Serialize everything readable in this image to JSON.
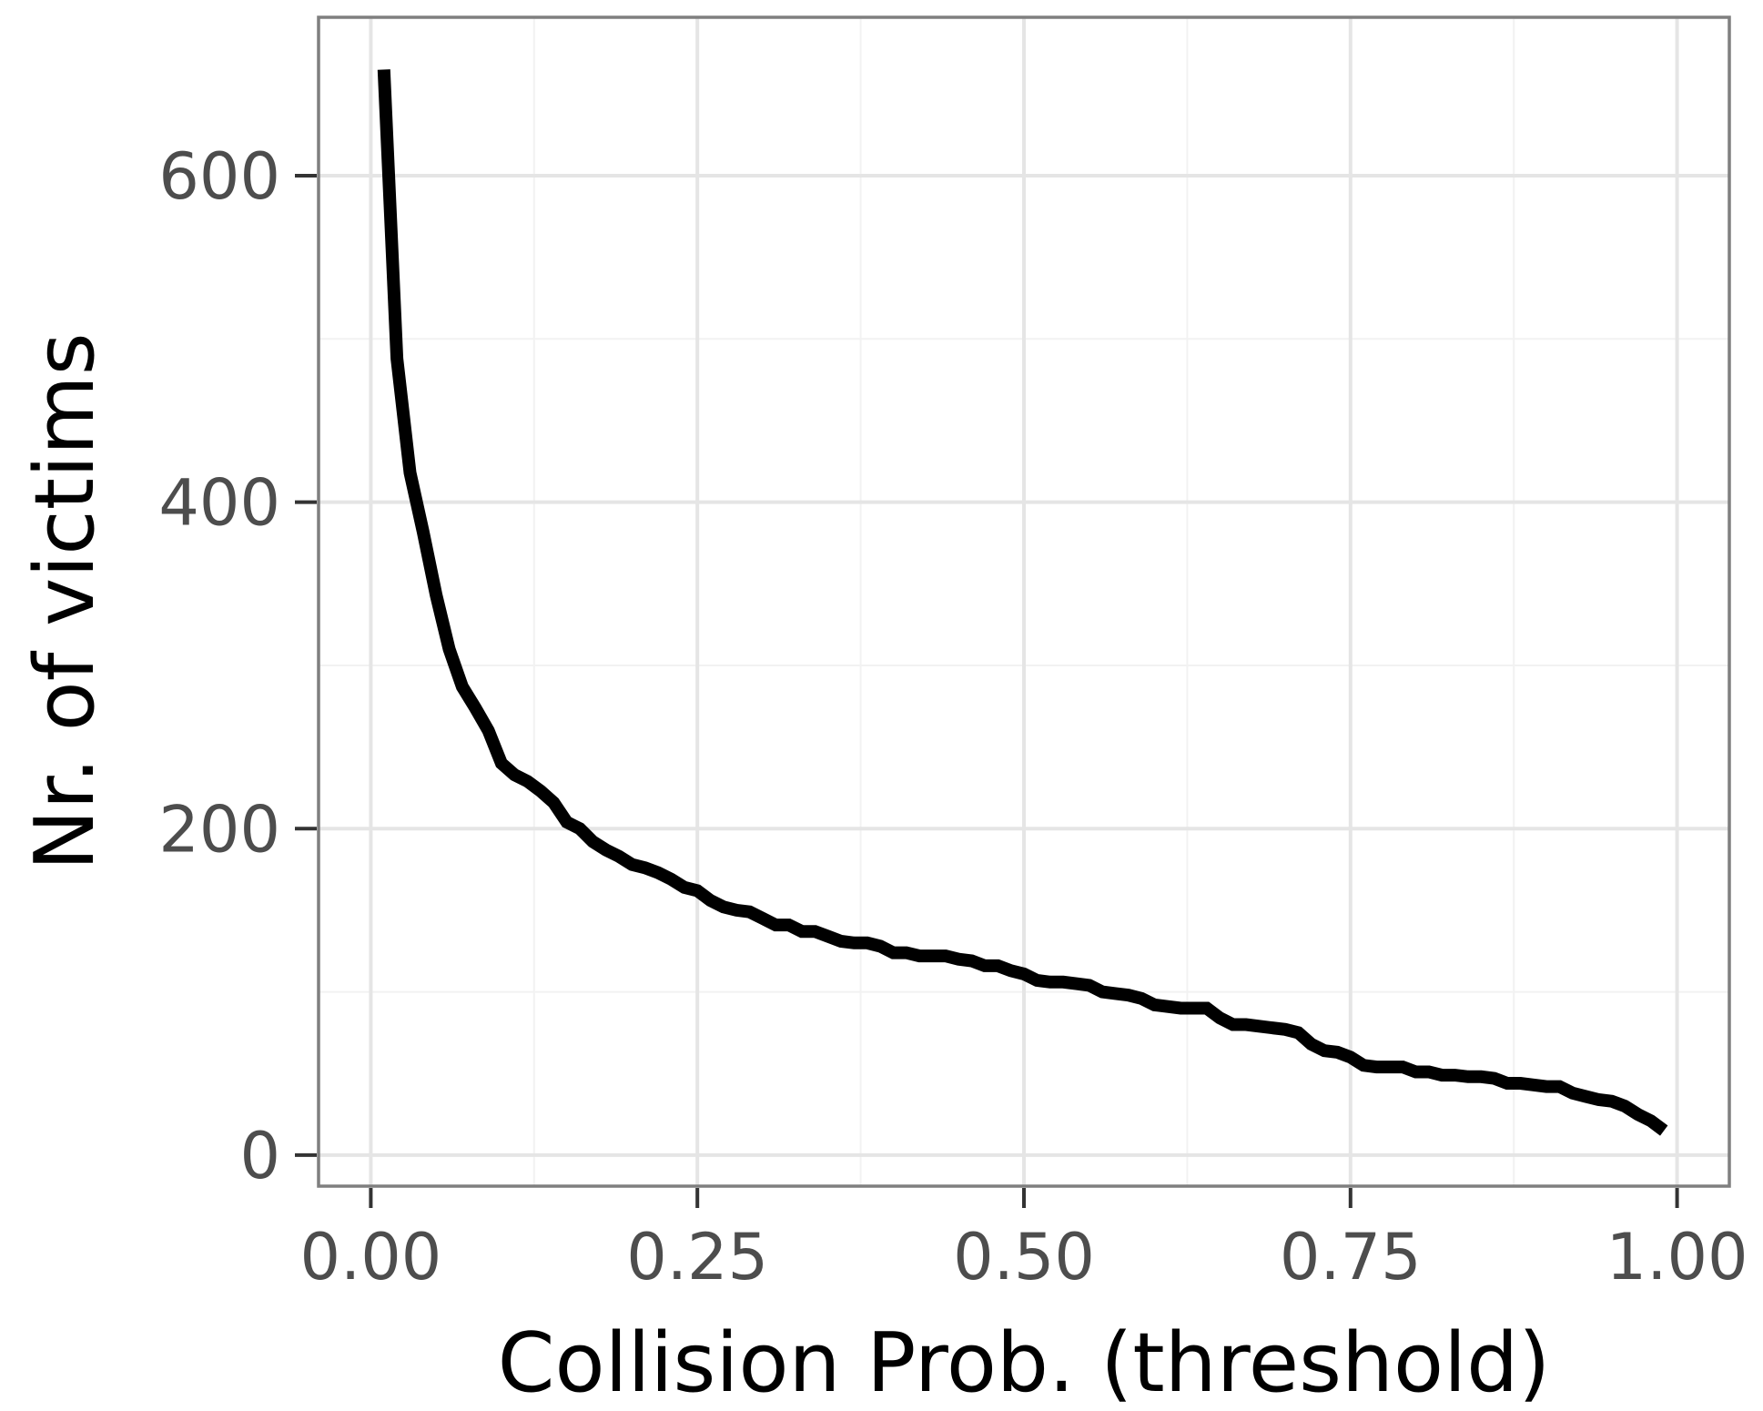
{
  "chart_data": {
    "type": "line",
    "xlabel": "Collision Prob. (threshold)",
    "ylabel": "Nr. of victims",
    "xlim": [
      -0.04,
      1.04
    ],
    "ylim": [
      -19,
      697
    ],
    "x_ticks": [
      0.0,
      0.25,
      0.5,
      0.75,
      1.0
    ],
    "x_tick_labels": [
      "0.00",
      "0.25",
      "0.50",
      "0.75",
      "1.00"
    ],
    "y_ticks": [
      0,
      200,
      400,
      600
    ],
    "y_tick_labels": [
      "0",
      "200",
      "400",
      "600"
    ],
    "grid": true,
    "legend": "none",
    "colors": {
      "line": "#000000",
      "grid": "#e5e5e5",
      "panel_border": "#7f7f7f",
      "tick_label": "#4d4d4d"
    },
    "series": [
      {
        "x": [
          0.01,
          0.02,
          0.03,
          0.04,
          0.05,
          0.06,
          0.07,
          0.08,
          0.09,
          0.1,
          0.11,
          0.12,
          0.13,
          0.14,
          0.15,
          0.16,
          0.17,
          0.18,
          0.19,
          0.2,
          0.21,
          0.22,
          0.23,
          0.24,
          0.25,
          0.26,
          0.27,
          0.28,
          0.29,
          0.3,
          0.31,
          0.32,
          0.33,
          0.34,
          0.35,
          0.36,
          0.37,
          0.38,
          0.39,
          0.4,
          0.41,
          0.42,
          0.43,
          0.44,
          0.45,
          0.46,
          0.47,
          0.48,
          0.49,
          0.5,
          0.51,
          0.52,
          0.53,
          0.54,
          0.55,
          0.56,
          0.57,
          0.58,
          0.59,
          0.6,
          0.61,
          0.62,
          0.63,
          0.64,
          0.65,
          0.66,
          0.67,
          0.68,
          0.69,
          0.7,
          0.71,
          0.72,
          0.73,
          0.74,
          0.75,
          0.76,
          0.77,
          0.78,
          0.79,
          0.8,
          0.81,
          0.82,
          0.83,
          0.84,
          0.85,
          0.86,
          0.87,
          0.88,
          0.89,
          0.9,
          0.91,
          0.92,
          0.93,
          0.94,
          0.95,
          0.96,
          0.97,
          0.98,
          0.99
        ],
        "y": [
          665,
          488,
          418,
          382,
          343,
          310,
          287,
          274,
          260,
          240,
          233,
          229,
          223,
          216,
          204,
          200,
          192,
          187,
          183,
          178,
          176,
          173,
          169,
          164,
          162,
          156,
          152,
          150,
          149,
          145,
          141,
          141,
          137,
          137,
          134,
          131,
          130,
          130,
          128,
          124,
          124,
          122,
          122,
          122,
          120,
          119,
          116,
          116,
          113,
          111,
          107,
          106,
          106,
          105,
          104,
          100,
          99,
          98,
          96,
          92,
          91,
          90,
          90,
          90,
          84,
          80,
          80,
          79,
          78,
          77,
          75,
          68,
          64,
          63,
          60,
          55,
          54,
          54,
          54,
          51,
          51,
          49,
          49,
          48,
          48,
          47,
          44,
          44,
          43,
          42,
          42,
          38,
          36,
          34,
          33,
          30,
          25,
          21,
          15
        ]
      }
    ]
  }
}
